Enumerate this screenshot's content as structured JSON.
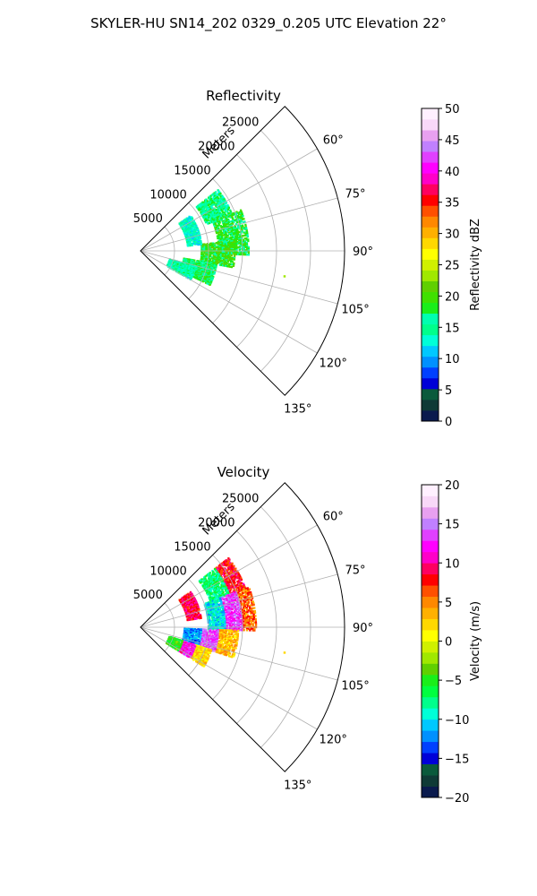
{
  "figure": {
    "suptitle": "SKYLER-HU  SN14_202  0329_0.205 UTC Elevation 22°"
  },
  "chart_data": [
    {
      "type": "heatmap",
      "projection": "polar-sector",
      "title": "Reflectivity",
      "radial_label": "Meters",
      "azimuth_range_deg": [
        45,
        135
      ],
      "radial_range_m": [
        0,
        30000
      ],
      "radial_ticks": [
        5000,
        10000,
        15000,
        20000,
        25000
      ],
      "radial_tick_labels": [
        "5000",
        "10000",
        "15000",
        "20000",
        "25000"
      ],
      "azimuth_ticks": [
        60,
        75,
        90,
        105,
        120,
        135
      ],
      "azimuth_tick_labels": [
        "60°",
        "75°",
        "90°",
        "105°",
        "120°",
        "135°"
      ],
      "grid": true,
      "colorbar": {
        "label": "Reflectivity dBZ",
        "range": [
          0,
          50
        ],
        "ticks": [
          0,
          5,
          10,
          15,
          20,
          25,
          30,
          35,
          40,
          45,
          50
        ],
        "tick_labels": [
          "0",
          "5",
          "10",
          "15",
          "20",
          "25",
          "30",
          "35",
          "40",
          "45",
          "50"
        ],
        "colors": [
          "#0a1a4d",
          "#0f3a36",
          "#0a5a3c",
          "#0000d8",
          "#0040ff",
          "#0090ff",
          "#00c8ff",
          "#00ffd8",
          "#00ff8c",
          "#00ffb0",
          "#1aee1a",
          "#40e000",
          "#60d000",
          "#a0e800",
          "#d0f000",
          "#ffff00",
          "#ffd800",
          "#ffb000",
          "#ff8800",
          "#ff5000",
          "#ff0000",
          "#ff0060",
          "#ff00c8",
          "#ff00ff",
          "#e040ff",
          "#c080ff",
          "#e8a0f0",
          "#f8d8f8",
          "#fff0ff"
        ]
      },
      "echo_regions": [
        {
          "az": [
            52,
            68
          ],
          "r": [
            10500,
            14500
          ],
          "value": 16
        },
        {
          "az": [
            68,
            92
          ],
          "r": [
            11500,
            16000
          ],
          "value": 18
        },
        {
          "az": [
            84,
            100
          ],
          "r": [
            9000,
            14000
          ],
          "value": 19
        },
        {
          "az": [
            100,
            116
          ],
          "r": [
            6500,
            11500
          ],
          "value": 17
        },
        {
          "az": [
            106,
            120
          ],
          "r": [
            4500,
            8500
          ],
          "value": 15
        },
        {
          "az": [
            55,
            84
          ],
          "r": [
            7000,
            9000
          ],
          "value": 14
        }
      ],
      "isolated_echoes": [
        {
          "az": 100,
          "r": 21500,
          "value": 24
        }
      ]
    },
    {
      "type": "heatmap",
      "projection": "polar-sector",
      "title": "Velocity",
      "radial_label": "Meters",
      "azimuth_range_deg": [
        45,
        135
      ],
      "radial_range_m": [
        0,
        30000
      ],
      "radial_ticks": [
        5000,
        10000,
        15000,
        20000,
        25000
      ],
      "radial_tick_labels": [
        "5000",
        "10000",
        "15000",
        "20000",
        "25000"
      ],
      "azimuth_ticks": [
        60,
        75,
        90,
        105,
        120,
        135
      ],
      "azimuth_tick_labels": [
        "60°",
        "75°",
        "90°",
        "105°",
        "120°",
        "135°"
      ],
      "grid": true,
      "colorbar": {
        "label": "Velocity (m/s)",
        "range": [
          -20,
          20
        ],
        "ticks": [
          -20,
          -15,
          -10,
          -5,
          0,
          5,
          10,
          15,
          20
        ],
        "tick_labels": [
          "−20",
          "−15",
          "−10",
          "−5",
          "0",
          "5",
          "10",
          "15",
          "20"
        ],
        "colors": [
          "#0a1a4d",
          "#0f3a36",
          "#0a5a3c",
          "#0000d8",
          "#0040ff",
          "#0090ff",
          "#00c8ff",
          "#00ffd8",
          "#00ff8c",
          "#00ff40",
          "#1aee1a",
          "#60d000",
          "#a0e800",
          "#d0f000",
          "#ffff00",
          "#ffd800",
          "#ffb000",
          "#ff8800",
          "#ff5000",
          "#ff0000",
          "#ff0060",
          "#ff00c8",
          "#ff00ff",
          "#e040ff",
          "#c080ff",
          "#e8a0f0",
          "#f8d8f8",
          "#fff0ff"
        ]
      },
      "echo_regions": [
        {
          "az": [
            52,
            70
          ],
          "r": [
            14000,
            16500
          ],
          "value": 8
        },
        {
          "az": [
            52,
            70
          ],
          "r": [
            11000,
            14000
          ],
          "value": -7
        },
        {
          "az": [
            70,
            92
          ],
          "r": [
            15000,
            17000
          ],
          "value": 6
        },
        {
          "az": [
            70,
            92
          ],
          "r": [
            12500,
            15000
          ],
          "value": 13
        },
        {
          "az": [
            70,
            92
          ],
          "r": [
            10000,
            12500
          ],
          "value": -10
        },
        {
          "az": [
            92,
            108
          ],
          "r": [
            11500,
            14500
          ],
          "value": 3
        },
        {
          "az": [
            92,
            108
          ],
          "r": [
            9000,
            11500
          ],
          "value": 14
        },
        {
          "az": [
            92,
            108
          ],
          "r": [
            6500,
            9000
          ],
          "value": -12
        },
        {
          "az": [
            108,
            122
          ],
          "r": [
            8500,
            11000
          ],
          "value": 2
        },
        {
          "az": [
            108,
            122
          ],
          "r": [
            6500,
            8500
          ],
          "value": 12
        },
        {
          "az": [
            108,
            122
          ],
          "r": [
            4500,
            6500
          ],
          "value": -5
        },
        {
          "az": [
            55,
            82
          ],
          "r": [
            7000,
            9000
          ],
          "value": 9
        }
      ],
      "isolated_echoes": [
        {
          "az": 100,
          "r": 21500,
          "value": 2
        }
      ]
    }
  ]
}
